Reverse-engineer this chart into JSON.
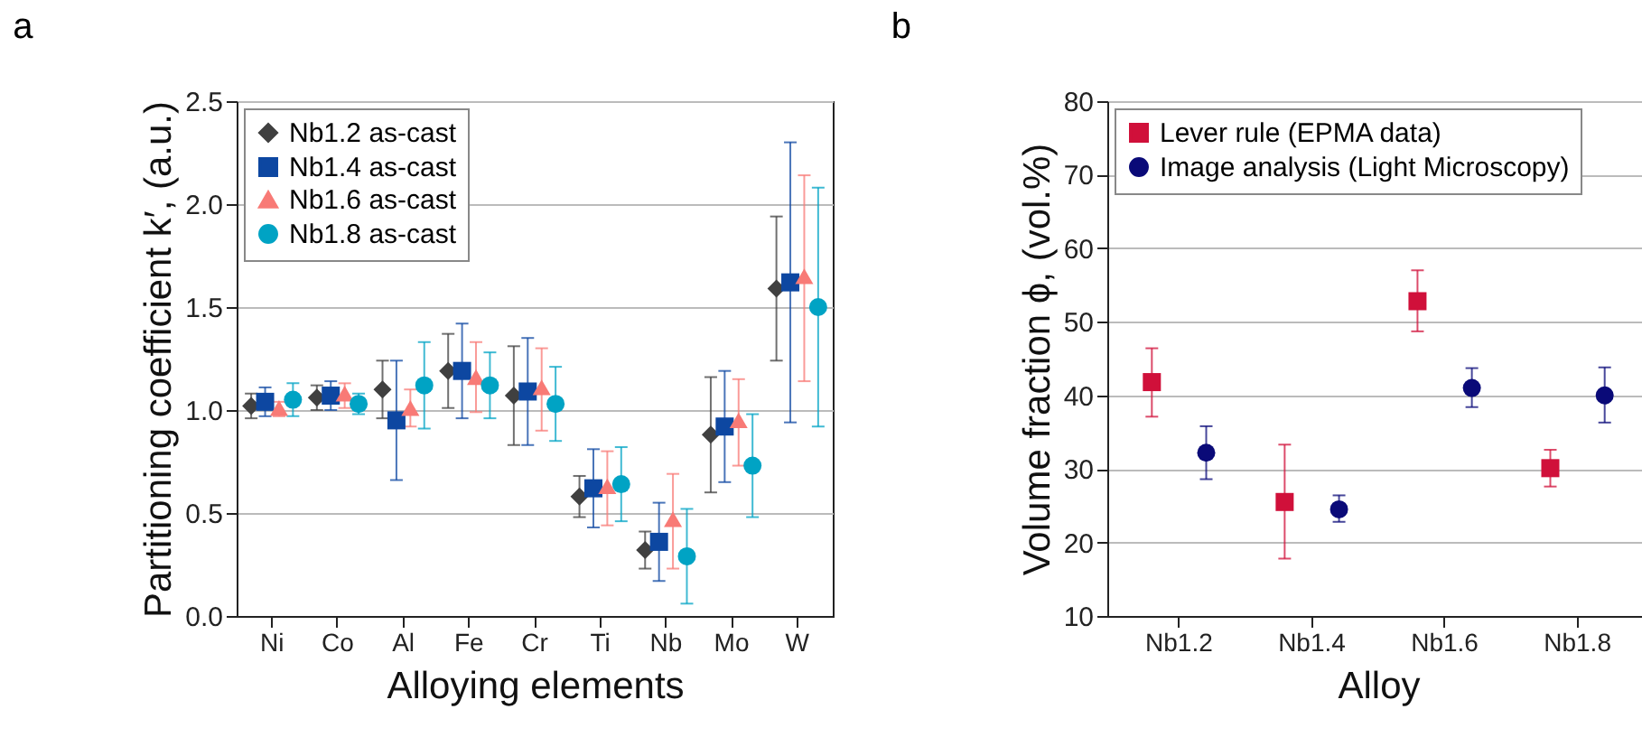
{
  "chart_data": [
    {
      "type": "scatter",
      "title": "a",
      "xlabel": "Alloying elements",
      "ylabel": "Partitioning coefficient k′, (a.u.)",
      "categories": [
        "Ni",
        "Co",
        "Al",
        "Fe",
        "Cr",
        "Ti",
        "Nb",
        "Mo",
        "W"
      ],
      "series": [
        {
          "name": "Nb1.2 as-cast",
          "color": "#404040",
          "marker": "diamond",
          "values": [
            1.02,
            1.06,
            1.1,
            1.19,
            1.07,
            0.58,
            0.32,
            0.88,
            1.59
          ],
          "errors": [
            [
              0.96,
              1.08
            ],
            [
              1.0,
              1.12
            ],
            [
              0.96,
              1.24
            ],
            [
              1.01,
              1.37
            ],
            [
              0.83,
              1.31
            ],
            [
              0.48,
              0.68
            ],
            [
              0.23,
              0.41
            ],
            [
              0.6,
              1.16
            ],
            [
              1.24,
              1.94
            ]
          ]
        },
        {
          "name": "Nb1.4 as-cast",
          "color": "#0d47a1",
          "marker": "square",
          "values": [
            1.04,
            1.07,
            0.95,
            1.19,
            1.09,
            0.62,
            0.36,
            0.92,
            1.62
          ],
          "errors": [
            [
              0.97,
              1.11
            ],
            [
              1.0,
              1.14
            ],
            [
              0.66,
              1.24
            ],
            [
              0.96,
              1.42
            ],
            [
              0.83,
              1.35
            ],
            [
              0.43,
              0.81
            ],
            [
              0.17,
              0.55
            ],
            [
              0.65,
              1.19
            ],
            [
              0.94,
              2.3
            ]
          ]
        },
        {
          "name": "Nb1.6 as-cast",
          "color": "#f87a76",
          "marker": "triangle",
          "values": [
            1.01,
            1.08,
            1.01,
            1.16,
            1.11,
            0.63,
            0.47,
            0.95,
            1.65
          ],
          "errors": [
            [
              0.97,
              1.04
            ],
            [
              1.01,
              1.13
            ],
            [
              0.92,
              1.1
            ],
            [
              0.99,
              1.33
            ],
            [
              0.9,
              1.3
            ],
            [
              0.44,
              0.8
            ],
            [
              0.23,
              0.69
            ],
            [
              0.73,
              1.15
            ],
            [
              1.14,
              2.14
            ]
          ]
        },
        {
          "name": "Nb1.8 as-cast",
          "color": "#00a3c4",
          "marker": "circle",
          "values": [
            1.05,
            1.03,
            1.12,
            1.12,
            1.03,
            0.64,
            0.29,
            0.73,
            1.5
          ],
          "errors": [
            [
              0.97,
              1.13
            ],
            [
              0.98,
              1.08
            ],
            [
              0.91,
              1.33
            ],
            [
              0.96,
              1.28
            ],
            [
              0.85,
              1.21
            ],
            [
              0.46,
              0.82
            ],
            [
              0.06,
              0.52
            ],
            [
              0.48,
              0.98
            ],
            [
              0.92,
              2.08
            ]
          ]
        }
      ],
      "ylim": [
        0,
        2.5
      ],
      "yticks": [
        {
          "value": 0,
          "label": "0.0"
        },
        {
          "value": 0.5,
          "label": "0.5"
        },
        {
          "value": 1,
          "label": "1.0"
        },
        {
          "value": 1.5,
          "label": "1.5"
        },
        {
          "value": 2,
          "label": "2.0"
        },
        {
          "value": 2.5,
          "label": "2.5"
        }
      ],
      "grid": "y",
      "legend": "top left"
    },
    {
      "type": "scatter",
      "title": "b",
      "xlabel": "Alloy",
      "ylabel": "Volume fraction ϕ, (vol.%)",
      "categories": [
        "Nb1.2",
        "Nb1.4",
        "Nb1.6",
        "Nb1.8"
      ],
      "series": [
        {
          "name": "Lever rule (EPMA data)",
          "color": "#d0103a",
          "marker": "square",
          "values": [
            41.8,
            25.5,
            52.8,
            30.1
          ],
          "errors": [
            [
              37.1,
              46.4
            ],
            [
              17.8,
              33.3
            ],
            [
              48.7,
              57.0
            ],
            [
              27.6,
              32.6
            ]
          ]
        },
        {
          "name": "Image analysis (Light Microscopy)",
          "color": "#0a0a78",
          "marker": "circle",
          "values": [
            32.2,
            24.5,
            41.0,
            40.0
          ],
          "errors": [
            [
              28.6,
              35.8
            ],
            [
              22.8,
              26.4
            ],
            [
              38.4,
              43.7
            ],
            [
              36.3,
              43.8
            ]
          ]
        }
      ],
      "ylim": [
        10,
        80
      ],
      "yticks": [
        10,
        20,
        30,
        40,
        50,
        60,
        70,
        80
      ],
      "grid": "y",
      "legend": "top left"
    }
  ]
}
